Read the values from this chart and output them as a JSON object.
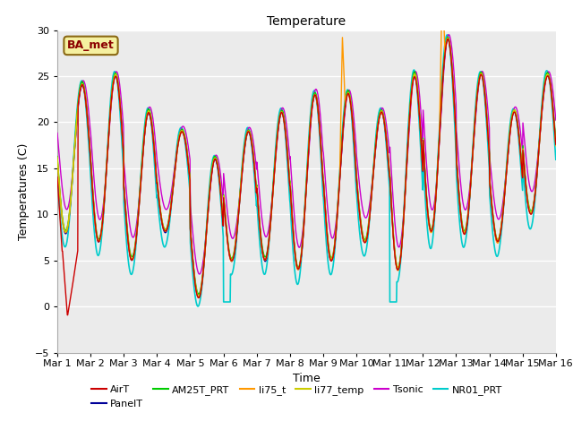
{
  "title": "Temperature",
  "xlabel": "Time",
  "ylabel": "Temperatures (C)",
  "ylim": [
    -5,
    30
  ],
  "xlim": [
    0,
    15
  ],
  "xtick_labels": [
    "Mar 1",
    "Mar 2",
    "Mar 3",
    "Mar 4",
    "Mar 5",
    "Mar 6",
    "Mar 7",
    "Mar 8",
    "Mar 9",
    "Mar 10",
    "Mar 11",
    "Mar 12",
    "Mar 13",
    "Mar 14",
    "Mar 15",
    "Mar 16"
  ],
  "series": {
    "AirT": {
      "color": "#cc0000",
      "lw": 1.0,
      "zorder": 5
    },
    "PanelT": {
      "color": "#000099",
      "lw": 1.0,
      "zorder": 4
    },
    "AM25T_PRT": {
      "color": "#00cc00",
      "lw": 1.0,
      "zorder": 4
    },
    "li75_t": {
      "color": "#ff9900",
      "lw": 1.0,
      "zorder": 4
    },
    "li77_temp": {
      "color": "#cccc00",
      "lw": 1.0,
      "zorder": 4
    },
    "Tsonic": {
      "color": "#cc00cc",
      "lw": 1.0,
      "zorder": 3
    },
    "NR01_PRT": {
      "color": "#00cccc",
      "lw": 1.2,
      "zorder": 2
    }
  },
  "legend_order": [
    "AirT",
    "PanelT",
    "AM25T_PRT",
    "li75_t",
    "li77_temp",
    "Tsonic",
    "NR01_PRT"
  ],
  "annotation_text": "BA_met",
  "plot_bg": "#ebebeb",
  "day_mins": [
    8,
    7,
    5,
    8,
    1,
    5,
    5,
    4,
    5,
    7,
    4,
    8,
    8,
    7,
    10
  ],
  "day_maxs": [
    24,
    25,
    21,
    19,
    16,
    19,
    21,
    23,
    23,
    21,
    25,
    29,
    25,
    21,
    25
  ]
}
